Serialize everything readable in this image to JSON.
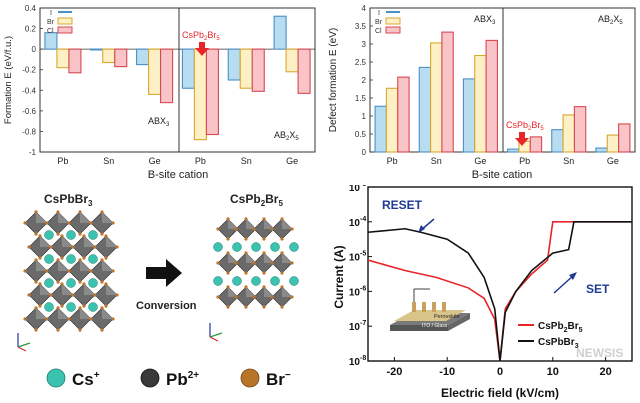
{
  "colors": {
    "I": "#b8dcf0",
    "I_edge": "#4a90c8",
    "Br": "#fdf0c4",
    "Br_edge": "#d8a830",
    "Cl": "#f8c4c8",
    "Cl_edge": "#d84850",
    "arrow_red": "#e8262a",
    "blue_text": "#1f3a93",
    "cs": "#3cc3b0",
    "pb": "#3a3a3a",
    "br": "#b8752a"
  },
  "chart_data": [
    {
      "type": "bar",
      "title": "",
      "xlabel": "B-site cation",
      "ylabel": "Formation E (eV/f.u.)",
      "ylim": [
        -1,
        0.4
      ],
      "yticks": [
        "0.4",
        "0.2",
        "0",
        "-0.2",
        "-0.4",
        "-0.6",
        "-0.8",
        "-1"
      ],
      "yticks_values": [
        0.4,
        0.2,
        0,
        -0.2,
        -0.4,
        -0.6,
        -0.8,
        -1
      ],
      "categories": [
        "Pb",
        "Sn",
        "Ge",
        "Pb",
        "Sn",
        "Ge"
      ],
      "legend": [
        "I",
        "Br",
        "Cl"
      ],
      "series": [
        {
          "name": "I",
          "values": [
            0.16,
            0.0,
            -0.15,
            -0.38,
            -0.3,
            0.32
          ]
        },
        {
          "name": "Br",
          "values": [
            -0.18,
            -0.13,
            -0.44,
            -0.88,
            -0.38,
            -0.22
          ]
        },
        {
          "name": "Cl",
          "values": [
            -0.23,
            -0.17,
            -0.52,
            -0.83,
            -0.41,
            -0.43
          ]
        }
      ],
      "annotations": {
        "structure_left": "ABX3",
        "structure_right": "AB2X5",
        "highlight": "CsPb2Br5"
      }
    },
    {
      "type": "bar",
      "title": "",
      "xlabel": "B-site cation",
      "ylabel": "Defect formation E (eV)",
      "ylim": [
        0,
        4
      ],
      "yticks": [
        "0",
        "0.5",
        "1",
        "1.5",
        "2",
        "2.5",
        "3",
        "3.5",
        "4"
      ],
      "yticks_values": [
        0,
        0.5,
        1,
        1.5,
        2,
        2.5,
        3,
        3.5,
        4
      ],
      "categories": [
        "Pb",
        "Sn",
        "Ge",
        "Pb",
        "Sn",
        "Ge"
      ],
      "legend": [
        "I",
        "Br",
        "Cl"
      ],
      "series": [
        {
          "name": "I",
          "values": [
            1.27,
            2.35,
            2.03,
            0.08,
            0.62,
            0.11
          ]
        },
        {
          "name": "Br",
          "values": [
            1.77,
            3.03,
            2.68,
            0.3,
            1.03,
            0.47
          ]
        },
        {
          "name": "Cl",
          "values": [
            2.08,
            3.33,
            3.1,
            0.42,
            1.26,
            0.78
          ]
        }
      ],
      "annotations": {
        "structure_left": "ABX3",
        "structure_right": "AB2X5",
        "highlight": "CsPb2Br5"
      }
    },
    {
      "type": "line",
      "title": "",
      "xlabel": "Electric field (kV/cm)",
      "ylabel": "Current (A)",
      "xlim": [
        -25,
        25
      ],
      "ylim": [
        1e-08,
        0.001
      ],
      "yscale": "log",
      "xticks": [
        "-20",
        "-10",
        "0",
        "10",
        "20"
      ],
      "xticks_values": [
        -20,
        -10,
        0,
        10,
        20
      ],
      "yticks": [
        "10",
        "10",
        "10",
        "10",
        "10",
        "10"
      ],
      "yticks_exp": [
        "-8",
        "-7",
        "-6",
        "-5",
        "-4",
        "-3"
      ],
      "yticks_values": [
        -8,
        -7,
        -6,
        -5,
        -4,
        -3
      ],
      "legend": [
        "CsPb",
        "CsPbBr"
      ],
      "series": [
        {
          "name": "CsPb2Br5",
          "x": [
            -25,
            -18,
            -12,
            -6,
            -3,
            -1,
            0,
            1,
            3,
            6,
            9,
            10,
            20,
            25
          ],
          "log10_y": [
            -5.1,
            -5.4,
            -5.6,
            -5.9,
            -6.2,
            -6.8,
            -8.0,
            -6.5,
            -6.0,
            -5.5,
            -5.1,
            -4.0,
            -4.0,
            -4.0
          ]
        },
        {
          "name": "CsPbBr3",
          "x": [
            -25,
            -18,
            -15,
            -10,
            -6,
            -3,
            -1,
            0,
            1,
            3,
            6,
            10,
            13,
            14,
            20,
            25
          ],
          "log10_y": [
            -4.3,
            -4.2,
            -4.3,
            -4.5,
            -4.9,
            -5.6,
            -6.5,
            -8.0,
            -6.6,
            -6.0,
            -5.4,
            -4.9,
            -4.8,
            -4.0,
            -4.0,
            -4.0
          ]
        }
      ],
      "annotations": {
        "reset": "RESET",
        "set": "SET",
        "device_top": "Perovskite",
        "device_bottom": "ITO / Glass"
      }
    }
  ],
  "crystal": {
    "left_title": "CsPbBr",
    "left_sub": "3",
    "right_title_a": "CsPb",
    "right_sub_a": "2",
    "right_title_b": "Br",
    "right_sub_b": "5",
    "conversion": "Conversion",
    "legend_cs": "Cs",
    "legend_cs_sup": "+",
    "legend_pb": "Pb",
    "legend_pb_sup": "2+",
    "legend_br": "Br",
    "legend_br_sup": "−"
  },
  "labels": {
    "abx": "ABX",
    "abx_sub": "3",
    "ab2x": "AB",
    "ab2x_sub1": "2",
    "ab2x_x": "X",
    "ab2x_sub2": "5",
    "highlight_a": "CsPb",
    "highlight_sub_a": "2",
    "highlight_b": "Br",
    "highlight_sub_b": "5",
    "legend_sub2": "2",
    "legend_br": "Br",
    "legend_sub5": "5",
    "legend_sub3": "3",
    "watermark": "NEWSIS"
  }
}
